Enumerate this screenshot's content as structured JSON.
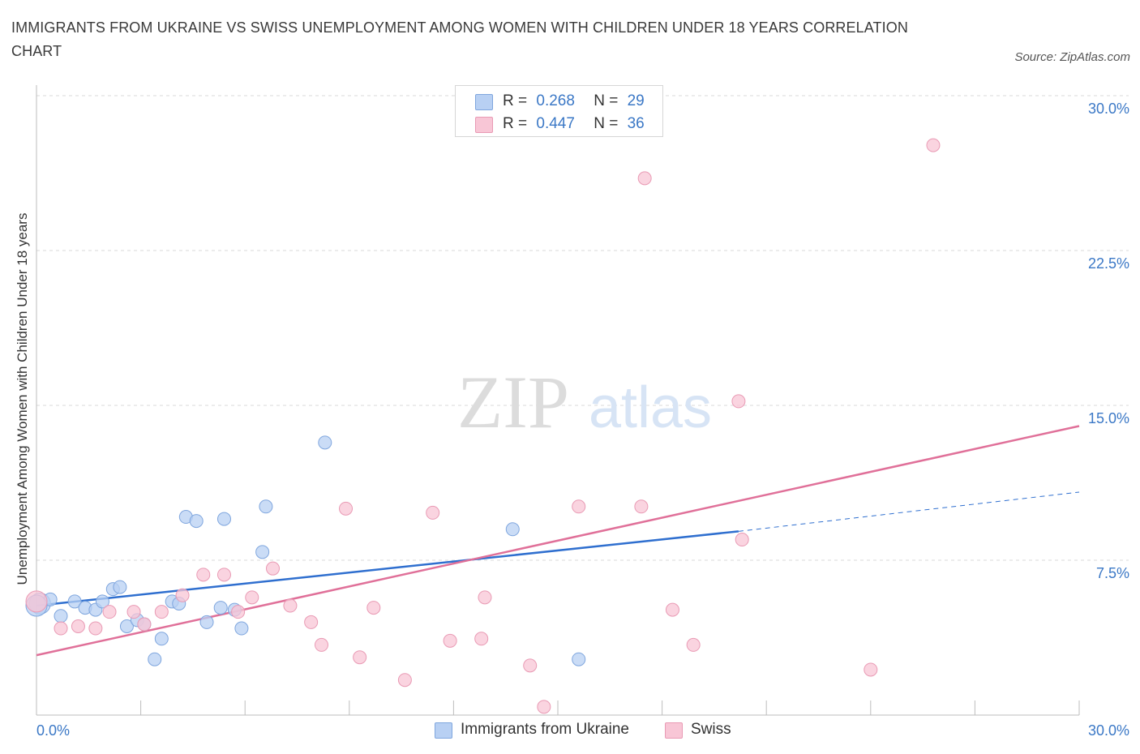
{
  "title": "IMMIGRANTS FROM UKRAINE VS SWISS UNEMPLOYMENT AMONG WOMEN WITH CHILDREN UNDER 18 YEARS CORRELATION CHART",
  "source": "Source: ZipAtlas.com",
  "watermark": {
    "zip": "ZIP",
    "atlas": "atlas"
  },
  "legend": {
    "rows": [
      {
        "r_label": "R =",
        "r_value": "0.268",
        "n_label": "N =",
        "n_value": "29",
        "color": "#b8d0f3",
        "border": "#7fa6de"
      },
      {
        "r_label": "R =",
        "r_value": "0.447",
        "n_label": "N =",
        "n_value": "36",
        "color": "#f8c6d6",
        "border": "#e99ab4"
      }
    ]
  },
  "bottom_legend": [
    {
      "label": "Immigrants from Ukraine",
      "color": "#b8d0f3",
      "border": "#7fa6de"
    },
    {
      "label": "Swiss",
      "color": "#f8c6d6",
      "border": "#e99ab4"
    }
  ],
  "chart_data": {
    "type": "scatter",
    "title": "IMMIGRANTS FROM UKRAINE VS SWISS UNEMPLOYMENT AMONG WOMEN WITH CHILDREN UNDER 18 YEARS CORRELATION CHART",
    "xlabel": "",
    "ylabel": "Unemployment Among Women with Children Under 18 years",
    "xlim": [
      0,
      30
    ],
    "ylim": [
      0,
      30
    ],
    "x_tick_labels": [
      "0.0%",
      "30.0%"
    ],
    "y_ticks": [
      7.5,
      15,
      22.5,
      30
    ],
    "y_tick_labels": [
      "7.5%",
      "15.0%",
      "22.5%",
      "30.0%"
    ],
    "grid": "horizontal dashed",
    "legend_placement": "top-center",
    "series": [
      {
        "name": "Immigrants from Ukraine",
        "color": "#7fa6de",
        "fill": "#b8d0f3",
        "points": [
          [
            0.1,
            5.4
          ],
          [
            0.4,
            5.6
          ],
          [
            0.7,
            4.8
          ],
          [
            1.1,
            5.5
          ],
          [
            1.4,
            5.2
          ],
          [
            1.7,
            5.1
          ],
          [
            1.9,
            5.5
          ],
          [
            2.2,
            6.1
          ],
          [
            2.4,
            6.2
          ],
          [
            2.6,
            4.3
          ],
          [
            2.9,
            4.6
          ],
          [
            3.1,
            4.4
          ],
          [
            3.4,
            2.7
          ],
          [
            3.6,
            3.7
          ],
          [
            3.9,
            5.5
          ],
          [
            4.1,
            5.4
          ],
          [
            4.3,
            9.6
          ],
          [
            4.6,
            9.4
          ],
          [
            4.9,
            4.5
          ],
          [
            5.3,
            5.2
          ],
          [
            5.4,
            9.5
          ],
          [
            5.7,
            5.1
          ],
          [
            5.9,
            4.2
          ],
          [
            6.5,
            7.9
          ],
          [
            6.6,
            10.1
          ],
          [
            8.3,
            13.2
          ],
          [
            13.7,
            9.0
          ],
          [
            15.6,
            2.7
          ],
          [
            0.0,
            5.3
          ]
        ],
        "trend": {
          "x0": 0,
          "y0": 5.3,
          "x1": 20.2,
          "y1": 8.9,
          "dash_to_x": 30,
          "dash_to_y": 10.8
        }
      },
      {
        "name": "Swiss",
        "color": "#e99ab4",
        "fill": "#f8c6d6",
        "points": [
          [
            0.0,
            5.5
          ],
          [
            0.7,
            4.2
          ],
          [
            1.2,
            4.3
          ],
          [
            1.7,
            4.2
          ],
          [
            2.1,
            5.0
          ],
          [
            2.8,
            5.0
          ],
          [
            3.1,
            4.4
          ],
          [
            3.6,
            5.0
          ],
          [
            4.2,
            5.8
          ],
          [
            4.8,
            6.8
          ],
          [
            5.4,
            6.8
          ],
          [
            5.8,
            5.0
          ],
          [
            6.2,
            5.7
          ],
          [
            6.8,
            7.1
          ],
          [
            7.3,
            5.3
          ],
          [
            7.9,
            4.5
          ],
          [
            8.2,
            3.4
          ],
          [
            8.9,
            10.0
          ],
          [
            9.3,
            2.8
          ],
          [
            9.7,
            5.2
          ],
          [
            10.6,
            1.7
          ],
          [
            11.4,
            9.8
          ],
          [
            11.9,
            3.6
          ],
          [
            12.8,
            3.7
          ],
          [
            12.9,
            5.7
          ],
          [
            14.2,
            2.4
          ],
          [
            14.6,
            0.4
          ],
          [
            15.6,
            10.1
          ],
          [
            17.4,
            10.1
          ],
          [
            17.5,
            26.0
          ],
          [
            18.3,
            5.1
          ],
          [
            18.9,
            3.4
          ],
          [
            20.2,
            15.2
          ],
          [
            20.3,
            8.5
          ],
          [
            24.0,
            2.2
          ],
          [
            25.8,
            27.6
          ]
        ],
        "trend": {
          "x0": 0,
          "y0": 2.9,
          "x1": 30,
          "y1": 14.0
        }
      }
    ]
  }
}
